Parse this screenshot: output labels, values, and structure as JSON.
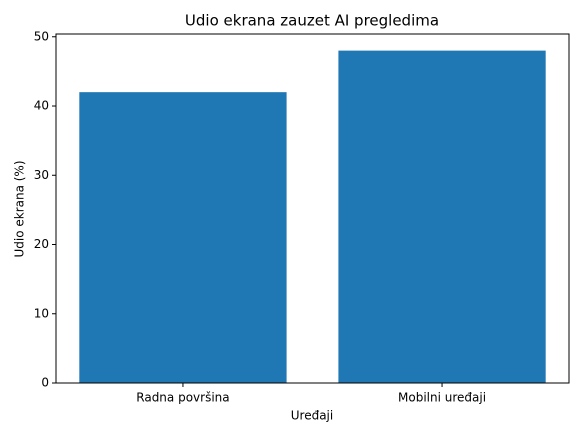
{
  "chart_data": {
    "type": "bar",
    "title": "Udio ekrana zauzet AI pregledima",
    "x_label": "Uređaji",
    "y_label": "Udio ekrana (%)",
    "categories": [
      "Radna površina",
      "Mobilni uređaji"
    ],
    "values": [
      42,
      48
    ],
    "color": "#1f77b4",
    "ylim": [
      0,
      50.4
    ],
    "yticks": [
      0,
      10,
      20,
      30,
      40,
      50
    ],
    "grid": false
  }
}
